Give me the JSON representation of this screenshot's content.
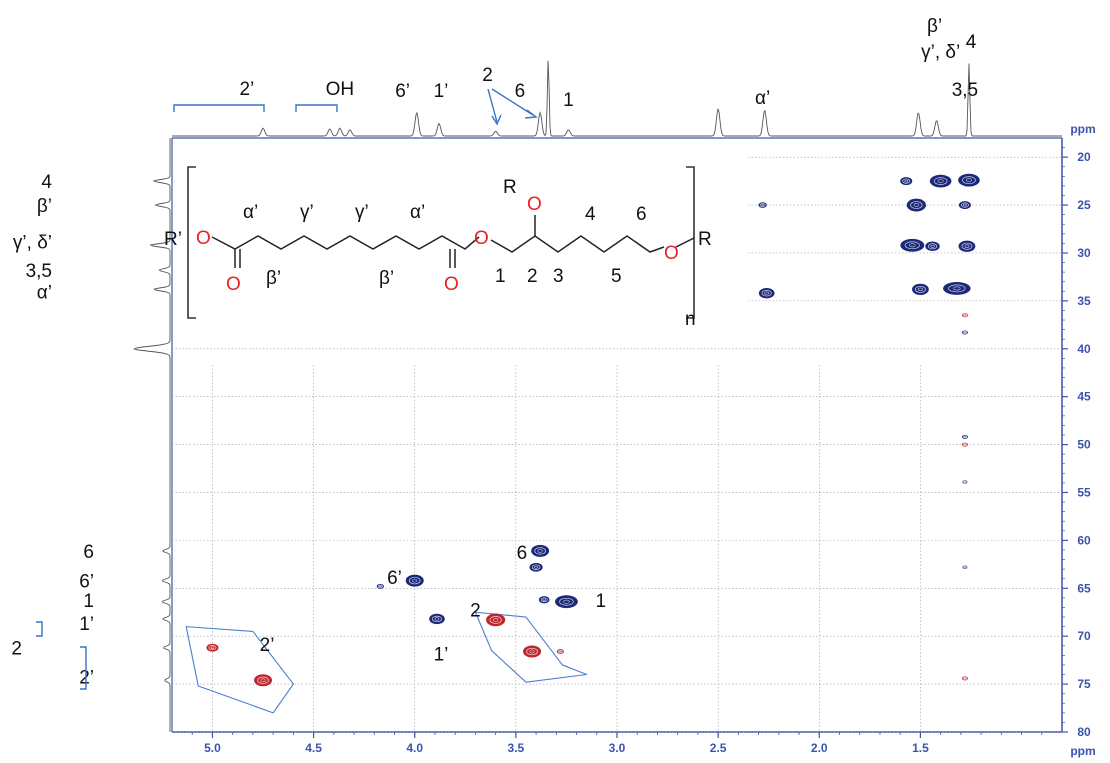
{
  "chart_data": {
    "type": "heatmap",
    "subtype": "2D HSQC NMR spectrum",
    "x_axis": {
      "unit": "ppm",
      "range": [
        5.2,
        0.8
      ],
      "reversed": true,
      "ticks": [
        5.0,
        4.5,
        4.0,
        3.5,
        3.0,
        2.5,
        2.0,
        1.5
      ],
      "tick_labels": [
        "5.0",
        "4.5",
        "4.0",
        "3.5",
        "3.0",
        "2.5",
        "2.0",
        "1.5"
      ]
    },
    "y_axis": {
      "unit": "ppm",
      "range": [
        18,
        80
      ],
      "reversed": true,
      "ticks": [
        20,
        25,
        30,
        35,
        40,
        45,
        50,
        55,
        60,
        65,
        70,
        75,
        80
      ],
      "tick_labels": [
        "20",
        "25",
        "30",
        "35",
        "40",
        "45",
        "50",
        "55",
        "60",
        "65",
        "70",
        "75",
        "80"
      ]
    },
    "grid": true,
    "colors": {
      "axis": "#3a54b0",
      "blue_contour": "#1c2878",
      "red_contour": "#c0262d",
      "region_outline": "#4a7fd0",
      "trace": "#555555"
    },
    "cross_peaks": [
      {
        "x": 5.0,
        "y": 71.2,
        "color": "red",
        "size": 1
      },
      {
        "x": 4.75,
        "y": 74.6,
        "color": "red",
        "size": 1.5
      },
      {
        "x": 4.17,
        "y": 64.8,
        "color": "blue",
        "size": 0.6
      },
      {
        "x": 4.0,
        "y": 64.2,
        "color": "blue",
        "size": 1.5
      },
      {
        "x": 3.89,
        "y": 68.2,
        "color": "blue",
        "size": 1.3
      },
      {
        "x": 3.6,
        "y": 68.3,
        "color": "red",
        "size": 1.6
      },
      {
        "x": 3.42,
        "y": 71.6,
        "color": "red",
        "size": 1.5
      },
      {
        "x": 3.38,
        "y": 61.1,
        "color": "blue",
        "size": 1.5
      },
      {
        "x": 3.4,
        "y": 62.8,
        "color": "blue",
        "size": 1.1
      },
      {
        "x": 3.36,
        "y": 66.2,
        "color": "blue",
        "size": 0.9
      },
      {
        "x": 3.25,
        "y": 66.4,
        "color": "blue",
        "size": 1.9
      },
      {
        "x": 3.28,
        "y": 71.6,
        "color": "red",
        "size": 0.6
      },
      {
        "x": 2.28,
        "y": 25.0,
        "color": "blue",
        "size": 0.7
      },
      {
        "x": 2.26,
        "y": 34.2,
        "color": "blue",
        "size": 1.3
      },
      {
        "x": 1.57,
        "y": 22.5,
        "color": "blue",
        "size": 1.0
      },
      {
        "x": 1.4,
        "y": 22.5,
        "color": "blue",
        "size": 1.8
      },
      {
        "x": 1.26,
        "y": 22.4,
        "color": "blue",
        "size": 1.8
      },
      {
        "x": 1.52,
        "y": 25.0,
        "color": "blue",
        "size": 1.6
      },
      {
        "x": 1.28,
        "y": 25.0,
        "color": "blue",
        "size": 1.0
      },
      {
        "x": 1.54,
        "y": 29.2,
        "color": "blue",
        "size": 2.0
      },
      {
        "x": 1.44,
        "y": 29.3,
        "color": "blue",
        "size": 1.2
      },
      {
        "x": 1.27,
        "y": 29.3,
        "color": "blue",
        "size": 1.4
      },
      {
        "x": 1.5,
        "y": 33.8,
        "color": "blue",
        "size": 1.4
      },
      {
        "x": 1.32,
        "y": 33.7,
        "color": "blue",
        "size": 2.3
      },
      {
        "x": 1.28,
        "y": 36.5,
        "color": "red",
        "size": 0.5
      },
      {
        "x": 1.28,
        "y": 38.3,
        "color": "blue",
        "size": 0.5
      },
      {
        "x": 1.28,
        "y": 49.2,
        "color": "blue",
        "size": 0.5
      },
      {
        "x": 1.28,
        "y": 50.0,
        "color": "red",
        "size": 0.5
      },
      {
        "x": 1.28,
        "y": 53.9,
        "color": "blue",
        "size": 0.4
      },
      {
        "x": 1.28,
        "y": 62.8,
        "color": "blue",
        "size": 0.4
      },
      {
        "x": 1.28,
        "y": 74.4,
        "color": "red",
        "size": 0.5
      }
    ],
    "top_projection": [
      {
        "x": 4.75,
        "h": 0.1
      },
      {
        "x": 4.42,
        "h": 0.09
      },
      {
        "x": 4.37,
        "h": 0.1
      },
      {
        "x": 4.32,
        "h": 0.08
      },
      {
        "x": 3.99,
        "h": 0.3
      },
      {
        "x": 3.88,
        "h": 0.16
      },
      {
        "x": 3.6,
        "h": 0.06
      },
      {
        "x": 3.38,
        "h": 0.3
      },
      {
        "x": 3.34,
        "h": 1.0
      },
      {
        "x": 3.24,
        "h": 0.08
      },
      {
        "x": 2.5,
        "h": 0.35
      },
      {
        "x": 2.27,
        "h": 0.33
      },
      {
        "x": 1.51,
        "h": 0.3
      },
      {
        "x": 1.42,
        "h": 0.2
      },
      {
        "x": 1.26,
        "h": 0.93
      }
    ],
    "side_projection": [
      {
        "y": 22.5,
        "w": 0.45
      },
      {
        "y": 25.0,
        "w": 0.4
      },
      {
        "y": 29.2,
        "w": 0.55
      },
      {
        "y": 31.8,
        "w": 0.3
      },
      {
        "y": 33.8,
        "w": 0.45
      },
      {
        "y": 40.0,
        "w": 1.0
      },
      {
        "y": 61.1,
        "w": 0.2
      },
      {
        "y": 64.2,
        "w": 0.22
      },
      {
        "y": 66.4,
        "w": 0.22
      },
      {
        "y": 68.2,
        "w": 0.2
      },
      {
        "y": 71.2,
        "w": 0.18
      },
      {
        "y": 74.6,
        "w": 0.15
      }
    ],
    "regions": [
      {
        "points": [
          [
            5.13,
            69.0
          ],
          [
            4.8,
            69.5
          ],
          [
            4.6,
            75.0
          ],
          [
            4.7,
            78.0
          ],
          [
            5.07,
            75.2
          ]
        ]
      },
      {
        "points": [
          [
            3.7,
            67.5
          ],
          [
            3.45,
            68.0
          ],
          [
            3.27,
            73.0
          ],
          [
            3.15,
            74.0
          ],
          [
            3.45,
            74.8
          ],
          [
            3.62,
            71.5
          ]
        ]
      }
    ],
    "top_labels": [
      {
        "text": "2’",
        "x": 4.83
      },
      {
        "text": "OH",
        "x": 4.37
      },
      {
        "text": "6’",
        "x": 4.06
      },
      {
        "text": "1’",
        "x": 3.87
      },
      {
        "text": "2",
        "x": 3.64
      },
      {
        "text": "6",
        "x": 3.48
      },
      {
        "text": "1",
        "x": 3.24
      },
      {
        "text": "α’",
        "x": 2.28
      },
      {
        "text": "β’",
        "x": 1.43
      },
      {
        "text": "γ’, δ’",
        "x": 1.4
      },
      {
        "text": "4",
        "x": 1.25
      },
      {
        "text": "3,5",
        "x": 1.28
      }
    ],
    "side_labels": [
      {
        "text": "4",
        "y": 22.5
      },
      {
        "text": "β’",
        "y": 25.0
      },
      {
        "text": "γ’, δ’",
        "y": 28.8
      },
      {
        "text": "3,5",
        "y": 31.8
      },
      {
        "text": "α’",
        "y": 34.0
      },
      {
        "text": "6",
        "y": 61.1
      },
      {
        "text": "6’",
        "y": 64.2
      },
      {
        "text": "1",
        "y": 66.2
      },
      {
        "text": "1’",
        "y": 68.6
      },
      {
        "text": "2",
        "y": 71.2
      },
      {
        "text": "2’",
        "y": 74.2
      }
    ],
    "peak_labels": [
      {
        "text": "2’",
        "x": 4.73,
        "y": 70.8
      },
      {
        "text": "6’",
        "x": 4.1,
        "y": 63.8
      },
      {
        "text": "1’",
        "x": 3.87,
        "y": 71.8
      },
      {
        "text": "2",
        "x": 3.7,
        "y": 67.2
      },
      {
        "text": "6",
        "x": 3.47,
        "y": 61.2
      },
      {
        "text": "1",
        "x": 3.08,
        "y": 66.2
      }
    ],
    "structure": {
      "end_group_left": "R’",
      "end_group_right": "R",
      "side_group": "R",
      "oxygen": "O",
      "repeat": "n",
      "labels": [
        "α’",
        "γ’",
        "γ’",
        "α’",
        "β’",
        "β’",
        "1",
        "2",
        "3",
        "4",
        "5",
        "6"
      ]
    }
  }
}
